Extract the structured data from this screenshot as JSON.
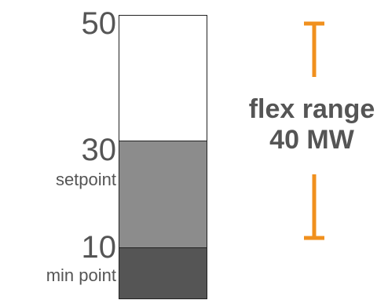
{
  "scale": {
    "top_value": "50",
    "setpoint_value": "30",
    "setpoint_label": "setpoint",
    "min_value": "10",
    "min_label": "min point"
  },
  "flex": {
    "line1": "flex range",
    "line2": "40 MW",
    "color": "#F0901E"
  },
  "bar_colors": {
    "upper": "#FFFFFF",
    "middle": "#8C8C8C",
    "lower": "#555555"
  }
}
